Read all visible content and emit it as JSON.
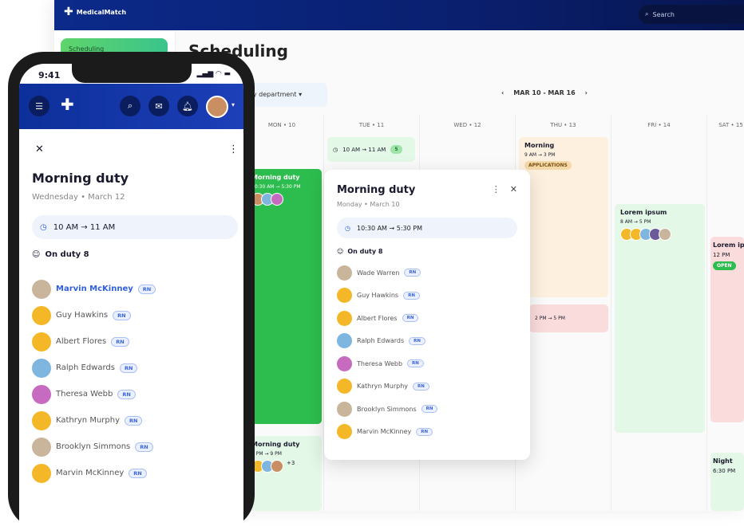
{
  "app": {
    "brand": "MedicalMatch",
    "search_placeholder": "Search",
    "sidebar_item": "Scheduling",
    "page_title": "Scheduling",
    "department_filter": "My department",
    "date_range": "MAR 10 - MAR 16",
    "prev": "‹",
    "next": "›"
  },
  "colors": {
    "nav": "#0a1f6e",
    "green": "#2dbd4e",
    "light_green": "#e3f8e6",
    "orange": "#fdf0df",
    "pink": "#fadcdc",
    "accent_blue": "#2f5fe0"
  },
  "days": [
    "MON • 10",
    "TUE • 11",
    "WED • 12",
    "THU • 13",
    "FRI • 14",
    "SAT • 15"
  ],
  "events": {
    "tue": {
      "time": "10 AM → 11 AM",
      "count": "5"
    },
    "mon1": {
      "title": "Morning duty",
      "time": "10:30 AM → 5:30 PM"
    },
    "mon2": {
      "title": "Morning duty",
      "time": "4 PM → 9 PM",
      "more": "+3"
    },
    "thu1": {
      "title": "Morning",
      "time": "9 AM → 3 PM",
      "badge": "APPLICATIONS"
    },
    "thu2": {
      "time": "2 PM → 5 PM"
    },
    "fri": {
      "title": "Lorem ipsum",
      "time": "8 AM → 5 PM"
    },
    "sat1": {
      "title": "Lorem ipsum",
      "time": "12 PM",
      "badge": "OPEN"
    },
    "sat2": {
      "title": "Night",
      "time": "6:30 PM"
    }
  },
  "popup": {
    "title": "Morning duty",
    "subtitle": "Monday • March 10",
    "time": "10:30 AM → 5:30 PM",
    "on_duty": "On duty 8",
    "people": [
      {
        "name": "Wade Warren",
        "role": "RN"
      },
      {
        "name": "Guy Hawkins",
        "role": "RN"
      },
      {
        "name": "Albert Flores",
        "role": "RN"
      },
      {
        "name": "Ralph Edwards",
        "role": "RN"
      },
      {
        "name": "Theresa Webb",
        "role": "RN"
      },
      {
        "name": "Kathryn Murphy",
        "role": "RN"
      },
      {
        "name": "Brooklyn Simmons",
        "role": "RN"
      },
      {
        "name": "Marvin McKinney",
        "role": "RN"
      }
    ]
  },
  "phone": {
    "time": "9:41",
    "title": "Morning duty",
    "subtitle": "Wednesday • March 12",
    "shift_time": "10 AM → 11 AM",
    "on_duty": "On duty 8",
    "people": [
      {
        "name": "Marvin McKinney",
        "role": "RN",
        "highlight": true
      },
      {
        "name": "Guy Hawkins",
        "role": "RN"
      },
      {
        "name": "Albert Flores",
        "role": "RN"
      },
      {
        "name": "Ralph Edwards",
        "role": "RN"
      },
      {
        "name": "Theresa Webb",
        "role": "RN"
      },
      {
        "name": "Kathryn Murphy",
        "role": "RN"
      },
      {
        "name": "Brooklyn Simmons",
        "role": "RN"
      },
      {
        "name": "Marvin McKinney",
        "role": "RN"
      }
    ]
  }
}
